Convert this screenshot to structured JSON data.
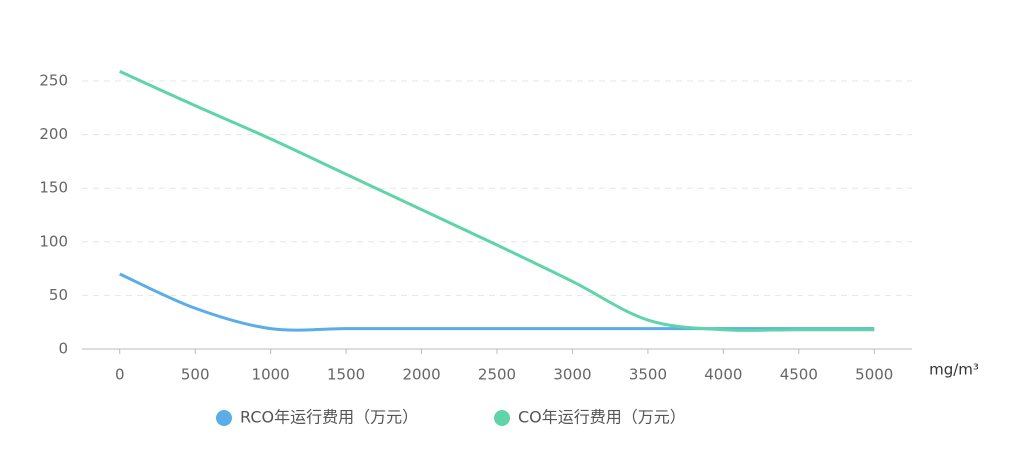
{
  "chart_data": {
    "type": "line",
    "x_label": "mg/m³",
    "x": [
      0,
      500,
      1000,
      1500,
      2000,
      2500,
      3000,
      3500,
      4000,
      4500,
      5000
    ],
    "series": [
      {
        "name": "RCO年运行费用（万元）",
        "color": "#5aade8",
        "values": [
          70,
          38,
          19,
          19,
          19,
          19,
          19,
          19,
          19,
          19,
          19
        ]
      },
      {
        "name": "CO年运行费用（万元）",
        "color": "#5fd4a8",
        "values": [
          259,
          227,
          196,
          163,
          130,
          97,
          63,
          27,
          18,
          18,
          18
        ]
      }
    ],
    "xlim": [
      -250,
      5250
    ],
    "xticks": [
      0,
      500,
      1000,
      1500,
      2000,
      2500,
      3000,
      3500,
      4000,
      4500,
      5000
    ],
    "ylim": [
      0,
      250
    ],
    "yticks": [
      0,
      50,
      100,
      150,
      200,
      250
    ],
    "grid": true
  }
}
